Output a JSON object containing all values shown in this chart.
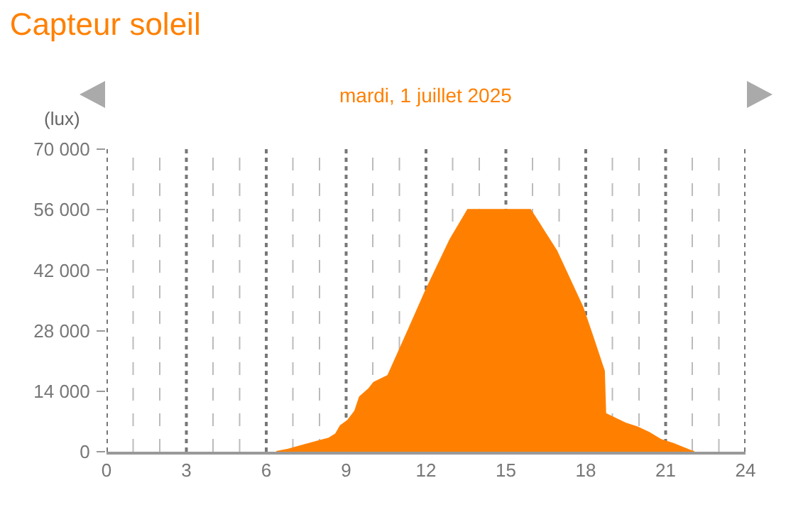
{
  "chart_data": {
    "type": "area",
    "title": "Capteur soleil",
    "subtitle": "mardi, 1 juillet 2025",
    "ylabel": "(lux)",
    "x": [
      6.38,
      6.83,
      7.28,
      7.99,
      8.35,
      8.61,
      8.79,
      9.06,
      9.33,
      9.51,
      9.86,
      10.04,
      10.57,
      11.29,
      12.0,
      12.9,
      13.57,
      15.92,
      16.9,
      17.88,
      18.24,
      18.69,
      18.74,
      19.49,
      19.94,
      20.38,
      20.83,
      21.27,
      21.95,
      22.07
    ],
    "series": [
      {
        "color": "#ff8000",
        "values": [
          0,
          550,
          1300,
          2500,
          3100,
          4100,
          6000,
          7200,
          9400,
          12700,
          14600,
          16000,
          17600,
          27500,
          37400,
          49000,
          56000,
          56000,
          46500,
          33500,
          27000,
          18700,
          8800,
          6600,
          5700,
          4400,
          2750,
          1900,
          200,
          0
        ]
      }
    ],
    "xlim": [
      0,
      24
    ],
    "xticks": [
      0,
      {
        "value": 1,
        "label": null
      },
      {
        "value": 2,
        "label": null
      },
      3,
      {
        "value": 4,
        "label": null
      },
      {
        "value": 5,
        "label": null
      },
      6,
      {
        "value": 7,
        "label": null
      },
      {
        "value": 8,
        "label": null
      },
      9,
      {
        "value": 10,
        "label": null
      },
      {
        "value": 11,
        "label": null
      },
      12,
      {
        "value": 13,
        "label": null
      },
      {
        "value": 14,
        "label": null
      },
      15,
      {
        "value": 16,
        "label": null
      },
      {
        "value": 17,
        "label": null
      },
      18,
      {
        "value": 19,
        "label": null
      },
      {
        "value": 20,
        "label": null
      },
      21,
      {
        "value": 22,
        "label": null
      },
      {
        "value": 23,
        "label": null
      },
      24
    ],
    "ylim": [
      0,
      70000
    ],
    "yticks": [
      0,
      {
        "value": 14000,
        "label": "14 000"
      },
      {
        "value": 28000,
        "label": "28 000"
      },
      {
        "value": 42000,
        "label": "42 000"
      },
      {
        "value": 56000,
        "label": "56 000"
      },
      {
        "value": 70000,
        "label": "70 000"
      }
    ],
    "grid": "x"
  }
}
